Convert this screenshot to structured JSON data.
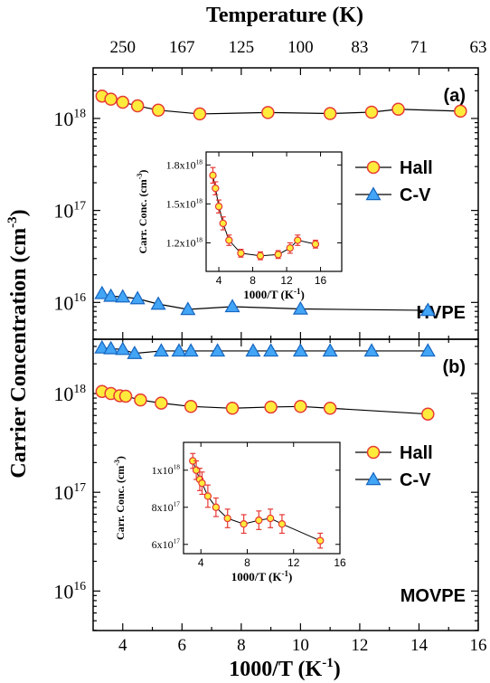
{
  "top_axis": {
    "label": "Temperature (K)",
    "ticks": [
      {
        "at": 4.0,
        "label": "250"
      },
      {
        "at": 6.0,
        "label": "167"
      },
      {
        "at": 8.0,
        "label": "125"
      },
      {
        "at": 10.0,
        "label": "100"
      },
      {
        "at": 12.0,
        "label": "83"
      },
      {
        "at": 14.0,
        "label": "71"
      },
      {
        "at": 16.0,
        "label": "63"
      }
    ]
  },
  "bottom_axis": {
    "label_main": "1000/T (K",
    "label_sup": "-1",
    "label_tail": ")",
    "ticks": [
      "4",
      "6",
      "8",
      "10",
      "12",
      "14",
      "16"
    ]
  },
  "y_axis": {
    "label_main": "Carrier Concentration (cm",
    "label_sup": "-3",
    "label_tail": ")"
  },
  "colors": {
    "hall_fill": "#FFEB3B",
    "hall_edge": "#E53935",
    "cv_fill": "#42A5F5",
    "cv_edge": "#1565C0",
    "line": "#000000"
  },
  "chart_data": [
    {
      "type": "scatter",
      "panel": "(a)",
      "sample": "HVPE",
      "xlim": [
        3,
        16
      ],
      "ylim_log10": [
        15.6,
        18.55
      ],
      "yscale": "log",
      "y_ticks": [
        {
          "exp": 16,
          "label": "10",
          "sup": "16"
        },
        {
          "exp": 17,
          "label": "10",
          "sup": "17"
        },
        {
          "exp": 18,
          "label": "10",
          "sup": "18"
        }
      ],
      "legend_position": "inside, right of inset",
      "series": [
        {
          "name": "Hall",
          "marker": "circle",
          "x": [
            3.3,
            3.6,
            4.0,
            4.5,
            5.2,
            6.6,
            8.9,
            11.0,
            12.4,
            13.3,
            15.4
          ],
          "y": [
            1.75e+18,
            1.62e+18,
            1.5e+18,
            1.37e+18,
            1.23e+18,
            1.12e+18,
            1.16e+18,
            1.13e+18,
            1.17e+18,
            1.26e+18,
            1.2e+18
          ]
        },
        {
          "name": "C-V",
          "marker": "triangle",
          "x": [
            3.3,
            3.6,
            4.0,
            4.5,
            5.2,
            6.2,
            7.7,
            10.0,
            14.3
          ],
          "y": [
            1.25e+16,
            1.17e+16,
            1.15e+16,
            1.1e+16,
            9600000000000000.0,
            8400000000000000.0,
            9000000000000000.0,
            8500000000000000.0,
            8200000000000000.0
          ]
        }
      ],
      "inset": {
        "xlabel_main": "1000/T (K",
        "xlabel_sup": "-1",
        "xlabel_tail": ")",
        "ylabel_main": "Carr. Conc. (cm",
        "ylabel_sup": "-3",
        "ylabel_tail": ")",
        "xlim": [
          2.5,
          18.5
        ],
        "ylim": [
          9.8e+17,
          1.9e+18
        ],
        "x_ticks": [
          "4",
          "8",
          "12",
          "16"
        ],
        "y_ticks": [
          {
            "value": 1.2e+18,
            "label": "1.2x10",
            "sup": "18"
          },
          {
            "value": 1.5e+18,
            "label": "1.5x10",
            "sup": "18"
          },
          {
            "value": 1.8e+18,
            "label": "1.8x10",
            "sup": "18"
          }
        ],
        "series": {
          "name": "Hall",
          "x": [
            3.3,
            3.6,
            4.0,
            4.5,
            5.2,
            6.6,
            8.9,
            11.0,
            12.4,
            13.3,
            15.4
          ],
          "y": [
            1.72e+18,
            1.62e+18,
            1.48e+18,
            1.35e+18,
            1.22e+18,
            1.12e+18,
            1.1e+18,
            1.11e+18,
            1.16e+18,
            1.22e+18,
            1.19e+18
          ],
          "err": [
            6e+16,
            5e+16,
            5e+16,
            5e+16,
            4e+16,
            3e+16,
            3e+16,
            3e+16,
            4e+16,
            4e+16,
            3e+16
          ]
        }
      }
    },
    {
      "type": "scatter",
      "panel": "(b)",
      "sample": "MOVPE",
      "xlim": [
        3,
        16
      ],
      "ylim_log10": [
        15.6,
        18.55
      ],
      "yscale": "log",
      "y_ticks": [
        {
          "exp": 16,
          "label": "10",
          "sup": "16"
        },
        {
          "exp": 17,
          "label": "10",
          "sup": "17"
        },
        {
          "exp": 18,
          "label": "10",
          "sup": "18"
        }
      ],
      "legend_position": "inside, right of inset",
      "series": [
        {
          "name": "Hall",
          "marker": "circle",
          "x": [
            3.3,
            3.6,
            3.9,
            4.1,
            4.6,
            5.3,
            6.3,
            7.7,
            9.0,
            10.0,
            11.0,
            14.3
          ],
          "y": [
            1.05e+18,
            1e+18,
            9.5e+17,
            9.4e+17,
            8.6e+17,
            8e+17,
            7.4e+17,
            7.1e+17,
            7.3e+17,
            7.4e+17,
            7.1e+17,
            6.2e+17
          ]
        },
        {
          "name": "C-V",
          "marker": "triangle",
          "x": [
            3.3,
            3.6,
            4.0,
            4.4,
            5.3,
            5.9,
            6.3,
            7.2,
            8.4,
            9.0,
            10.0,
            11.0,
            12.4,
            14.3
          ],
          "y": [
            2.9e+18,
            2.85e+18,
            2.8e+18,
            2.55e+18,
            2.7e+18,
            2.7e+18,
            2.7e+18,
            2.7e+18,
            2.7e+18,
            2.7e+18,
            2.7e+18,
            2.7e+18,
            2.7e+18,
            2.7e+18
          ]
        }
      ],
      "inset": {
        "xlabel_main": "1000/T (K",
        "xlabel_sup": "-1",
        "xlabel_tail": ")",
        "ylabel_main": "Carr. Conc. (cm",
        "ylabel_sup": "-3",
        "ylabel_tail": ")",
        "xlim": [
          2.5,
          16.0
        ],
        "ylim": [
          5.5e+17,
          1.15e+18
        ],
        "x_ticks": [
          "4",
          "8",
          "12",
          "16"
        ],
        "y_ticks": [
          {
            "value": 6e+17,
            "label": "6x10",
            "sup": "17"
          },
          {
            "value": 8e+17,
            "label": "8x10",
            "sup": "17"
          },
          {
            "value": 1e+18,
            "label": "1x10",
            "sup": "18"
          }
        ],
        "series": {
          "name": "Hall",
          "x": [
            3.3,
            3.6,
            3.9,
            4.1,
            4.6,
            5.3,
            6.3,
            7.7,
            9.0,
            10.0,
            11.0,
            14.3
          ],
          "y": [
            1.05e+18,
            1e+18,
            9.5e+17,
            9.3e+17,
            8.6e+17,
            8e+17,
            7.4e+17,
            7.1e+17,
            7.3e+17,
            7.4e+17,
            7.1e+17,
            6.2e+17
          ],
          "err": [
            4e+16,
            5e+16,
            6e+16,
            6e+16,
            6e+16,
            5e+16,
            5e+16,
            5e+16,
            5e+16,
            5e+16,
            5e+16,
            4e+16
          ]
        }
      }
    }
  ]
}
